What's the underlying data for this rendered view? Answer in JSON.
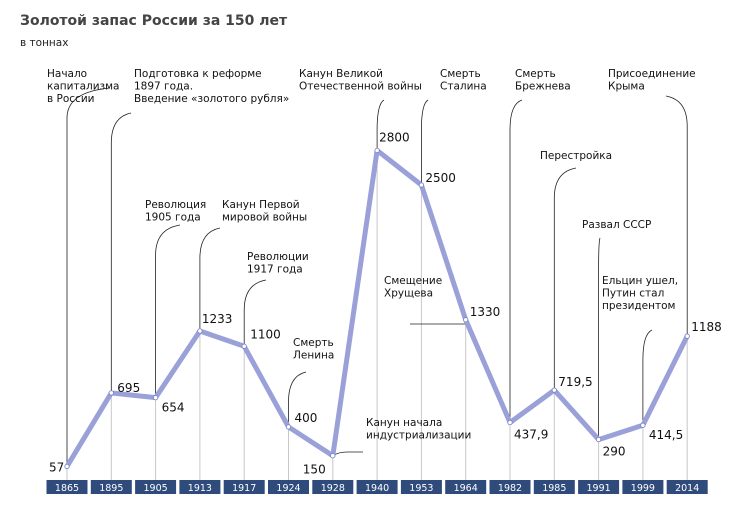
{
  "title": "Золотой запас России за 150 лет",
  "subtitle": "в тоннах",
  "colors": {
    "line": "#9aa0d8",
    "axis_box": "#2f4b7c",
    "grid": "#c8c8c8",
    "text": "#111111",
    "title": "#444444"
  },
  "chart_data": {
    "type": "line",
    "title": "Золотой запас России за 150 лет",
    "ylabel": "в тоннах",
    "x": [
      "1865",
      "1895",
      "1905",
      "1913",
      "1917",
      "1924",
      "1928",
      "1940",
      "1953",
      "1964",
      "1982",
      "1985",
      "1991",
      "1999",
      "2014"
    ],
    "values": [
      57,
      695,
      654,
      1233,
      1100,
      400,
      150,
      2800,
      2500,
      1330,
      437.9,
      719.5,
      290,
      414.5,
      1188
    ],
    "value_labels": [
      "57",
      "695",
      "654",
      "1233",
      "1100",
      "400",
      "150",
      "2800",
      "2500",
      "1330",
      "437,9",
      "719,5",
      "290",
      "414,5",
      "1188"
    ],
    "grid": false,
    "legend": "none",
    "annotations": [
      {
        "lines": [
          "Начало",
          "капитализма",
          "в России"
        ],
        "year": "1865"
      },
      {
        "lines": [
          "Подготовка к реформе",
          "1897 года.",
          "Введение «золотого рубля»"
        ],
        "year": "1895"
      },
      {
        "lines": [
          "Революция",
          "1905 года"
        ],
        "year": "1905"
      },
      {
        "lines": [
          "Канун Первой",
          "мировой войны"
        ],
        "year": "1913"
      },
      {
        "lines": [
          "Революции",
          "1917 года"
        ],
        "year": "1917"
      },
      {
        "lines": [
          "Смерть",
          "Ленина"
        ],
        "year": "1924"
      },
      {
        "lines": [
          "Канун начала",
          "индустриализации"
        ],
        "year": "1928"
      },
      {
        "lines": [
          "Канун Великой",
          "Отечественной войны"
        ],
        "year": "1940"
      },
      {
        "lines": [
          "Смерть",
          "Сталина"
        ],
        "year": "1953"
      },
      {
        "lines": [
          "Смещение",
          "Хрущева"
        ],
        "year": "1964"
      },
      {
        "lines": [
          "Смерть",
          "Брежнева"
        ],
        "year": "1982"
      },
      {
        "lines": [
          "Перестройка"
        ],
        "year": "1985"
      },
      {
        "lines": [
          "Развал СССР"
        ],
        "year": "1991"
      },
      {
        "lines": [
          "Ельцин ушел,",
          "Путин стал",
          "президентом"
        ],
        "year": "1999"
      },
      {
        "lines": [
          "Присоединение",
          "Крыма"
        ],
        "year": "2014"
      }
    ]
  }
}
